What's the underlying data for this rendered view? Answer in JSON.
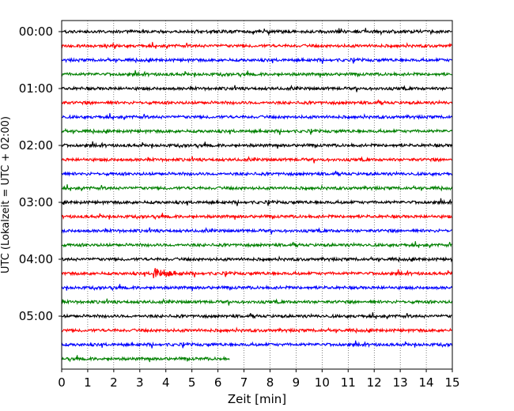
{
  "chart_data": {
    "type": "line",
    "xlabel": "Zeit  [min]",
    "ylabel": "UTC (Lokalzeit = UTC + 02:00)",
    "xlim": [
      0,
      15
    ],
    "x_ticks": [
      0,
      1,
      2,
      3,
      4,
      5,
      6,
      7,
      8,
      9,
      10,
      11,
      12,
      13,
      14,
      15
    ],
    "y_tick_labels": [
      "00:00",
      "01:00",
      "02:00",
      "03:00",
      "04:00",
      "05:00"
    ],
    "grid": "vertical dotted",
    "trace_interval_minutes": 15,
    "trace_colors": [
      "#000000",
      "#ff0000",
      "#0000ff",
      "#008000"
    ],
    "series": [
      {
        "start": "00:00",
        "end_minute": 15
      },
      {
        "start": "00:15",
        "end_minute": 15
      },
      {
        "start": "00:30",
        "end_minute": 15
      },
      {
        "start": "00:45",
        "end_minute": 15
      },
      {
        "start": "01:00",
        "end_minute": 15
      },
      {
        "start": "01:15",
        "end_minute": 15
      },
      {
        "start": "01:30",
        "end_minute": 15
      },
      {
        "start": "01:45",
        "end_minute": 15
      },
      {
        "start": "02:00",
        "end_minute": 15
      },
      {
        "start": "02:15",
        "end_minute": 15
      },
      {
        "start": "02:30",
        "end_minute": 15
      },
      {
        "start": "02:45",
        "end_minute": 15
      },
      {
        "start": "03:00",
        "end_minute": 15
      },
      {
        "start": "03:15",
        "end_minute": 15
      },
      {
        "start": "03:30",
        "end_minute": 15
      },
      {
        "start": "03:45",
        "end_minute": 15
      },
      {
        "start": "04:00",
        "end_minute": 15
      },
      {
        "start": "04:15",
        "end_minute": 15,
        "events_minute": [
          3.7
        ]
      },
      {
        "start": "04:30",
        "end_minute": 15
      },
      {
        "start": "04:45",
        "end_minute": 15
      },
      {
        "start": "05:00",
        "end_minute": 15
      },
      {
        "start": "05:15",
        "end_minute": 15
      },
      {
        "start": "05:30",
        "end_minute": 15
      },
      {
        "start": "05:45",
        "end_minute": 6.45
      }
    ]
  }
}
